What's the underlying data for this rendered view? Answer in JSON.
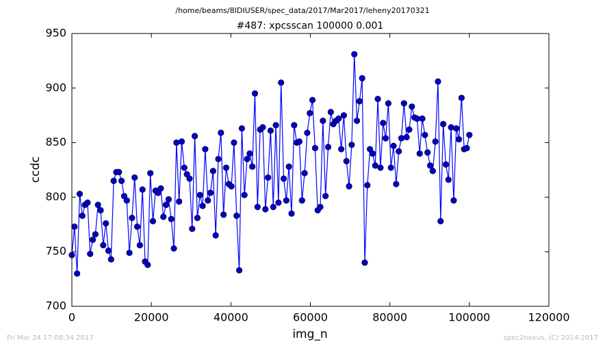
{
  "chart_data": {
    "type": "line",
    "suptitle": "/home/beams/8IDIUSER/spec_data/2017/Mar2017/leheny20170321",
    "title": "#487: xpcsscan 100000 0.001",
    "x_label": "img_n",
    "y_label": "ccdc",
    "xlim": [
      0,
      120000
    ],
    "xticks": [
      0,
      20000,
      40000,
      60000,
      80000,
      100000,
      120000
    ],
    "ylim": [
      700,
      950
    ],
    "yticks": [
      700,
      750,
      800,
      850,
      900,
      950
    ],
    "grid": false,
    "x": [
      0,
      658,
      1316,
      1974,
      2632,
      3289,
      3947,
      4605,
      5263,
      5921,
      6579,
      7237,
      7895,
      8553,
      9211,
      9868,
      10526,
      11184,
      11842,
      12500,
      13158,
      13816,
      14474,
      15132,
      15789,
      16447,
      17105,
      17763,
      18421,
      19079,
      19737,
      20395,
      21053,
      21711,
      22368,
      23026,
      23684,
      24342,
      25000,
      25658,
      26316,
      26974,
      27632,
      28289,
      28947,
      29605,
      30263,
      30921,
      31579,
      32237,
      32895,
      33553,
      34211,
      34868,
      35526,
      36184,
      36842,
      37500,
      38158,
      38816,
      39474,
      40132,
      40789,
      41447,
      42105,
      42763,
      43421,
      44079,
      44737,
      45395,
      46053,
      46711,
      47368,
      48026,
      48684,
      49342,
      50000,
      50658,
      51316,
      51974,
      52632,
      53289,
      53947,
      54605,
      55263,
      55921,
      56579,
      57237,
      57895,
      58553,
      59211,
      59868,
      60526,
      61184,
      61842,
      62500,
      63158,
      63816,
      64474,
      65132,
      65789,
      66447,
      67105,
      67763,
      68421,
      69079,
      69737,
      70395,
      71053,
      71711,
      72368,
      73026,
      73684,
      74342,
      75000,
      75658,
      76316,
      76974,
      77632,
      78289,
      78947,
      79605,
      80263,
      80921,
      81579,
      82237,
      82895,
      83553,
      84211,
      84868,
      85526,
      86184,
      86842,
      87500,
      88158,
      88816,
      89474,
      90132,
      90789,
      91447,
      92105,
      92763,
      93421,
      94079,
      94737,
      95395,
      96053,
      96711,
      97368,
      98026,
      98684,
      99342,
      100000
    ],
    "series": [
      {
        "color": "#0000ff",
        "marker_color": "#0000cc",
        "values": [
          747,
          773,
          730,
          803,
          783,
          793,
          795,
          748,
          761,
          766,
          793,
          788,
          756,
          776,
          751,
          743,
          815,
          823,
          823,
          815,
          801,
          797,
          749,
          781,
          818,
          773,
          756,
          807,
          741,
          738,
          822,
          778,
          806,
          804,
          808,
          782,
          793,
          798,
          780,
          753,
          850,
          796,
          851,
          827,
          821,
          817,
          771,
          856,
          781,
          802,
          792,
          844,
          797,
          804,
          824,
          765,
          835,
          859,
          784,
          827,
          812,
          810,
          850,
          783,
          733,
          863,
          802,
          835,
          840,
          828,
          895,
          791,
          862,
          864,
          789,
          818,
          861,
          791,
          866,
          795,
          905,
          817,
          797,
          828,
          785,
          866,
          850,
          851,
          797,
          822,
          859,
          877,
          889,
          845,
          788,
          791,
          870,
          801,
          846,
          878,
          867,
          870,
          872,
          844,
          875,
          833,
          810,
          848,
          931,
          870,
          888,
          909,
          740,
          811,
          844,
          840,
          829,
          890,
          827,
          868,
          854,
          886,
          827,
          847,
          812,
          842,
          854,
          886,
          855,
          862,
          883,
          873,
          872,
          840,
          872,
          857,
          841,
          829,
          824,
          851,
          906,
          778,
          867,
          830,
          816,
          864,
          797,
          863,
          853,
          891,
          844,
          845,
          857
        ]
      }
    ]
  },
  "footer": {
    "left": "Fri Mar 24 17:08:34 2017",
    "right": "spec2nexus, (C) 2014-2017"
  }
}
